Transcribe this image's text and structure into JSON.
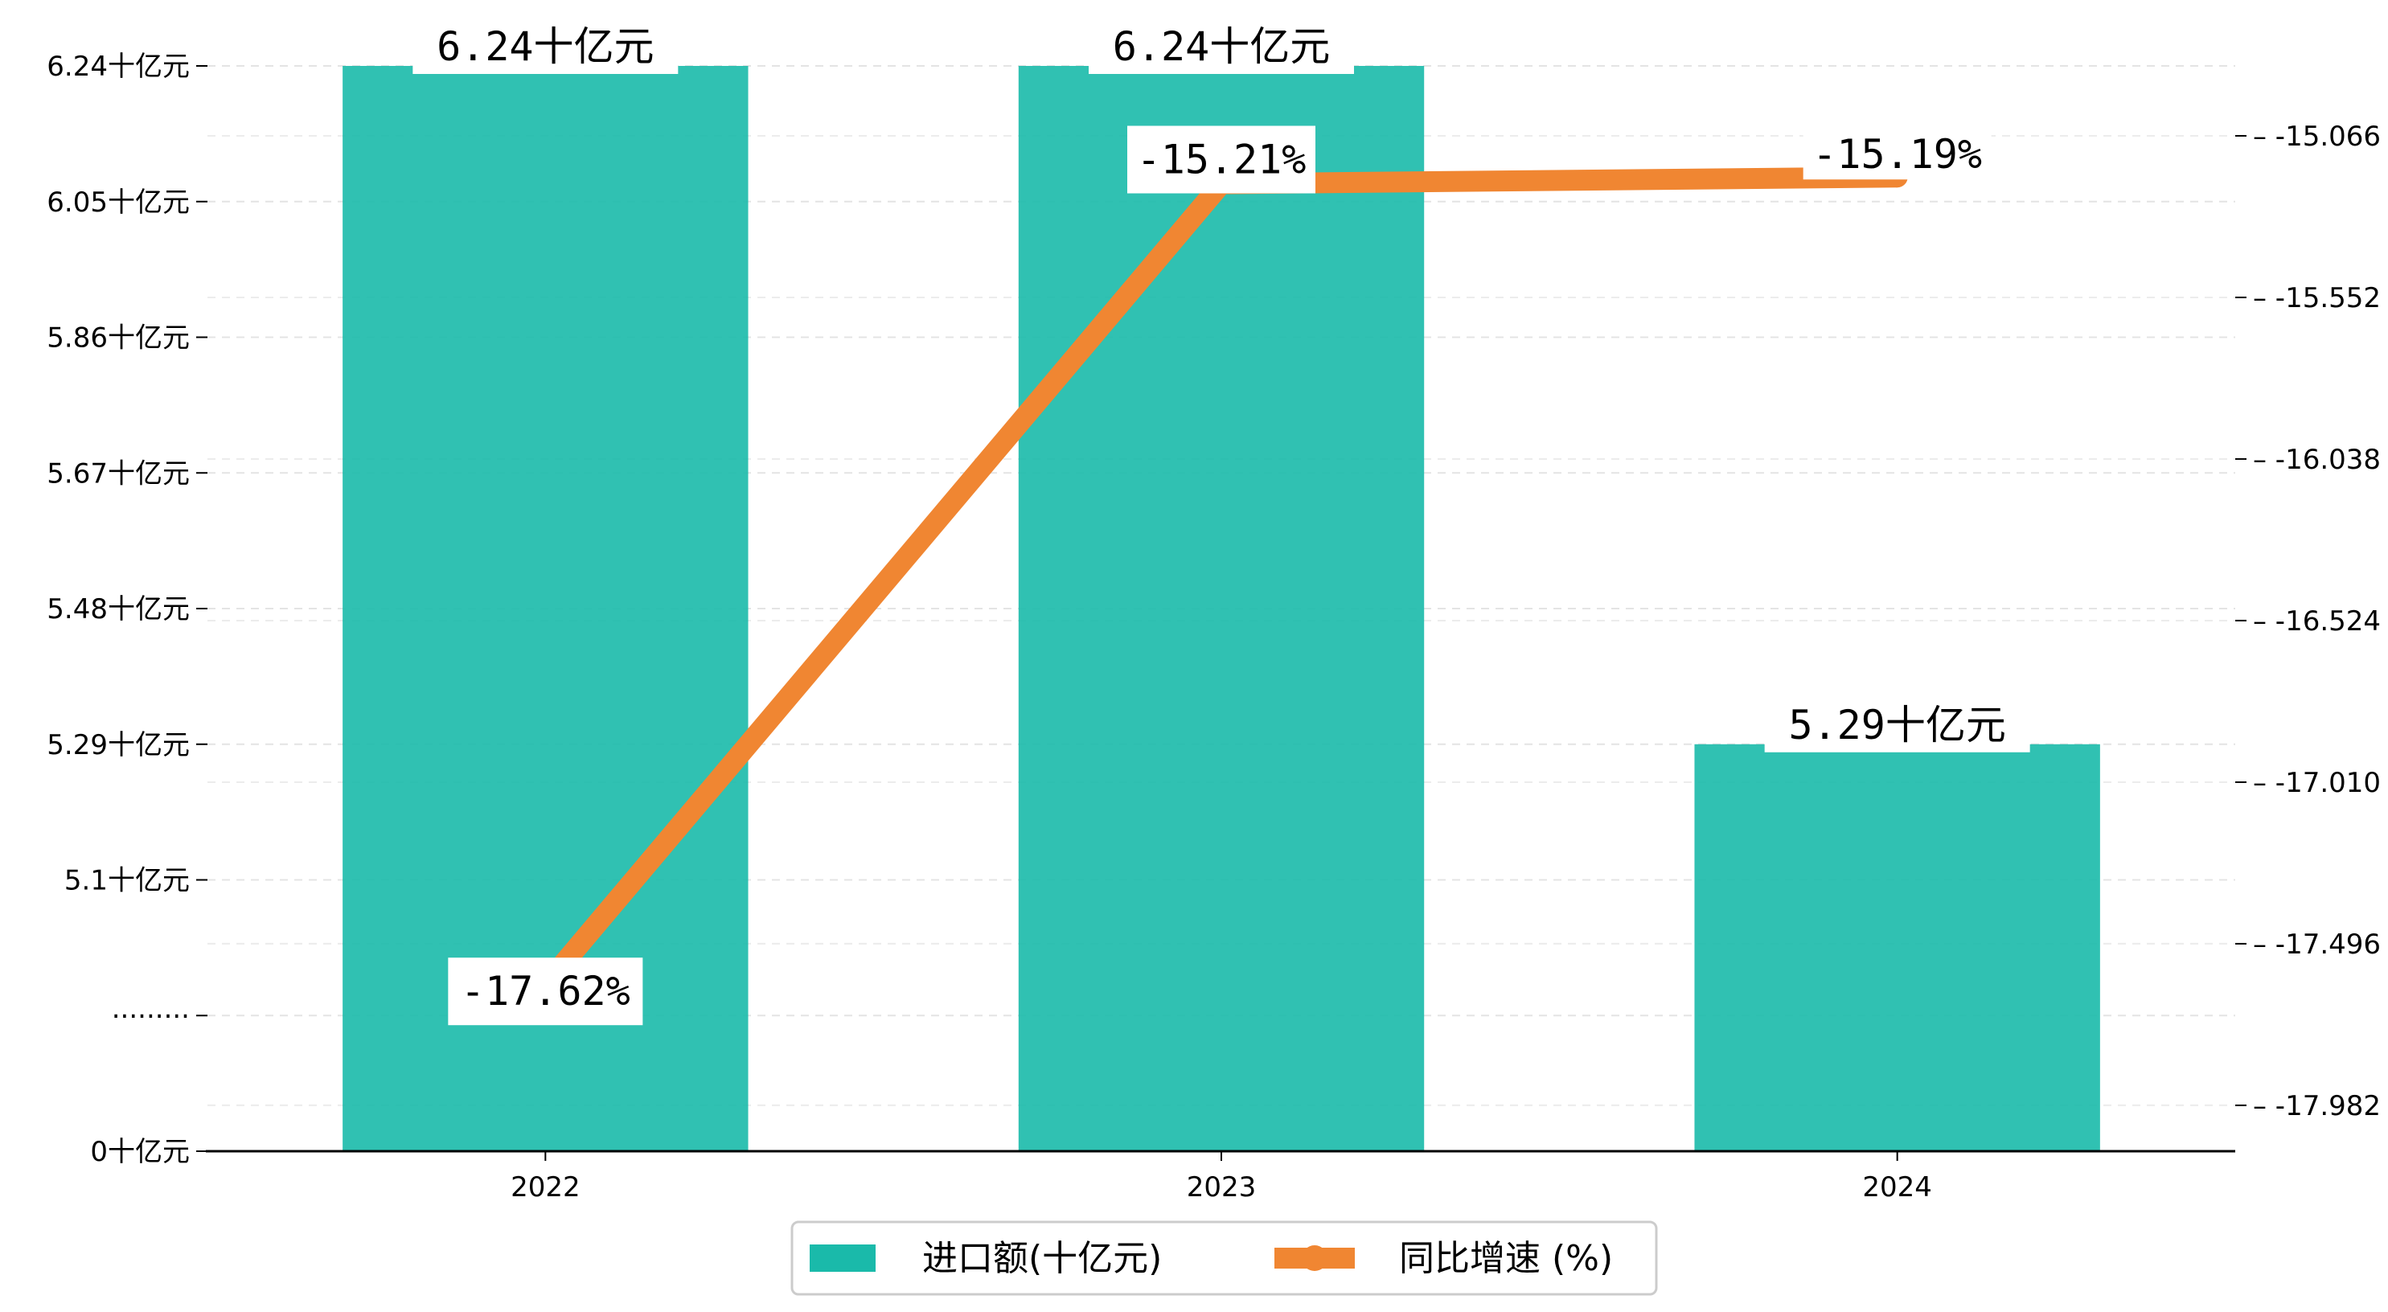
{
  "chart_data": {
    "type": "bar+line",
    "categories": [
      "2022",
      "2023",
      "2024"
    ],
    "series": [
      {
        "name": "进口额(十亿元)",
        "type": "bar",
        "axis": "left",
        "values": [
          6.24,
          6.24,
          5.29
        ],
        "labels": [
          "6.24十亿元",
          "6.24十亿元",
          "5.29十亿元"
        ],
        "color": "#1ABAAA"
      },
      {
        "name": "同比增速 (%)",
        "type": "line",
        "axis": "right",
        "values": [
          -17.62,
          -15.21,
          -15.19
        ],
        "labels": [
          "-17.62%",
          "-15.21%",
          "-15.19%"
        ],
        "color": "#F08632"
      }
    ],
    "left_axis": {
      "broken": true,
      "ticks": [
        {
          "label": "0十亿元",
          "value": 0
        },
        {
          "label": "·········",
          "value": null
        },
        {
          "label": "5.1十亿元",
          "value": 5.1
        },
        {
          "label": "5.29十亿元",
          "value": 5.29
        },
        {
          "label": "5.48十亿元",
          "value": 5.48
        },
        {
          "label": "5.67十亿元",
          "value": 5.67
        },
        {
          "label": "5.86十亿元",
          "value": 5.86
        },
        {
          "label": "6.05十亿元",
          "value": 6.05
        },
        {
          "label": "6.24十亿元",
          "value": 6.24
        }
      ]
    },
    "right_axis": {
      "ylim": [
        -18.12,
        -14.73
      ],
      "ticks": [
        "-15.066",
        "-15.552",
        "-16.038",
        "-16.524",
        "-17.010",
        "-17.496",
        "-17.982"
      ]
    },
    "grid": "horizontal dashed",
    "legend": "bottom-center"
  }
}
